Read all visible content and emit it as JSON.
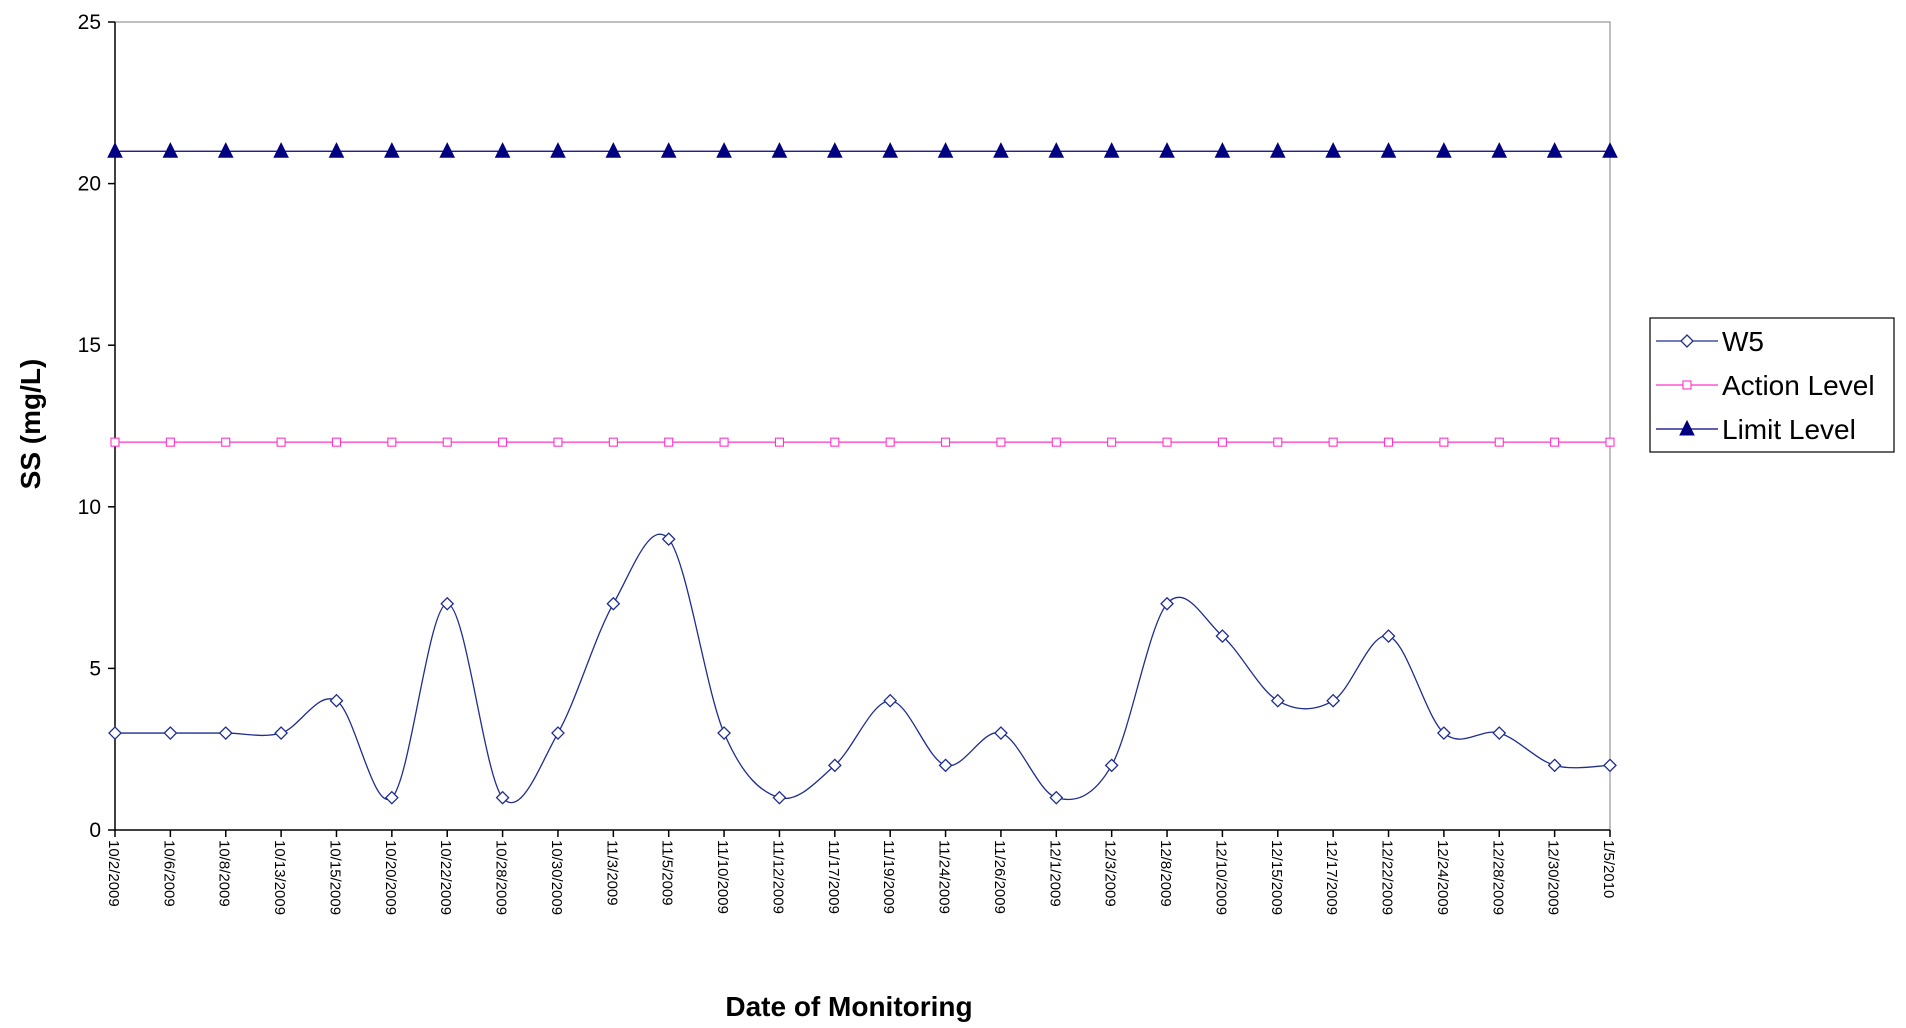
{
  "chart_data": {
    "type": "line",
    "title": "",
    "xlabel": "Date of Monitoring",
    "ylabel": "SS (mg/L)",
    "ylim": [
      0,
      25
    ],
    "yticks": [
      0,
      5,
      10,
      15,
      20,
      25
    ],
    "grid": false,
    "legend_position": "right",
    "categories": [
      "10/2/2009",
      "10/6/2009",
      "10/8/2009",
      "10/13/2009",
      "10/15/2009",
      "10/20/2009",
      "10/22/2009",
      "10/28/2009",
      "10/30/2009",
      "11/3/2009",
      "11/5/2009",
      "11/10/2009",
      "11/12/2009",
      "11/17/2009",
      "11/19/2009",
      "11/24/2009",
      "11/26/2009",
      "12/1/2009",
      "12/3/2009",
      "12/8/2009",
      "12/10/2009",
      "12/15/2009",
      "12/17/2009",
      "12/22/2009",
      "12/24/2009",
      "12/28/2009",
      "12/30/2009",
      "1/5/2010"
    ],
    "series": [
      {
        "name": "W5",
        "marker": "diamond",
        "color": "#1f2d8f",
        "smooth": true,
        "values": [
          3,
          3,
          3,
          3,
          4,
          1,
          7,
          1,
          3,
          7,
          9,
          3,
          1,
          2,
          4,
          2,
          3,
          1,
          2,
          7,
          6,
          4,
          4,
          6,
          3,
          3,
          2,
          2
        ]
      },
      {
        "name": "Action Level",
        "marker": "square",
        "color": "#ff33cc",
        "smooth": false,
        "values": [
          12,
          12,
          12,
          12,
          12,
          12,
          12,
          12,
          12,
          12,
          12,
          12,
          12,
          12,
          12,
          12,
          12,
          12,
          12,
          12,
          12,
          12,
          12,
          12,
          12,
          12,
          12,
          12
        ]
      },
      {
        "name": "Limit Level",
        "marker": "triangle",
        "color": "#000080",
        "smooth": false,
        "values": [
          21,
          21,
          21,
          21,
          21,
          21,
          21,
          21,
          21,
          21,
          21,
          21,
          21,
          21,
          21,
          21,
          21,
          21,
          21,
          21,
          21,
          21,
          21,
          21,
          21,
          21,
          21,
          21
        ]
      }
    ]
  }
}
